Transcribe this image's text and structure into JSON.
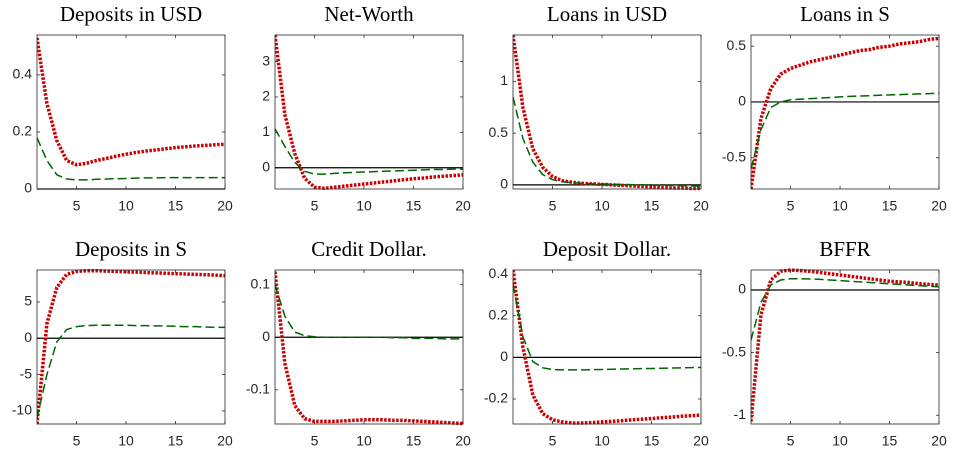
{
  "chart_data": [
    {
      "type": "line",
      "title": "Deposits in USD",
      "x": [
        1,
        2,
        3,
        4,
        5,
        6,
        7,
        8,
        9,
        10,
        11,
        12,
        13,
        14,
        15,
        16,
        17,
        18,
        19,
        20
      ],
      "xlim": [
        1,
        20
      ],
      "xticks": [
        5,
        10,
        15,
        20
      ],
      "ylim": [
        0,
        0.54
      ],
      "yticks": [
        0,
        0.2,
        0.4
      ],
      "zero_line": true,
      "series": [
        {
          "color": "#cc0000",
          "dash": "dotted",
          "values": [
            0.53,
            0.3,
            0.17,
            0.1,
            0.085,
            0.09,
            0.1,
            0.107,
            0.115,
            0.122,
            0.128,
            0.133,
            0.137,
            0.141,
            0.145,
            0.148,
            0.151,
            0.153,
            0.155,
            0.157
          ]
        },
        {
          "color": "#006600",
          "dash": "dashed",
          "values": [
            0.18,
            0.1,
            0.05,
            0.035,
            0.032,
            0.032,
            0.034,
            0.035,
            0.036,
            0.037,
            0.038,
            0.039,
            0.039,
            0.04,
            0.04,
            0.04,
            0.04,
            0.04,
            0.04,
            0.04
          ]
        }
      ]
    },
    {
      "type": "line",
      "title": "Net-Worth",
      "x": [
        1,
        2,
        3,
        4,
        5,
        6,
        7,
        8,
        9,
        10,
        11,
        12,
        13,
        14,
        15,
        16,
        17,
        18,
        19,
        20
      ],
      "xlim": [
        1,
        20
      ],
      "xticks": [
        5,
        10,
        15,
        20
      ],
      "ylim": [
        -0.6,
        3.75
      ],
      "yticks": [
        0,
        1,
        2,
        3
      ],
      "zero_line": true,
      "series": [
        {
          "color": "#cc0000",
          "dash": "dotted",
          "values": [
            3.75,
            1.5,
            0.4,
            -0.3,
            -0.55,
            -0.58,
            -0.55,
            -0.52,
            -0.49,
            -0.46,
            -0.43,
            -0.4,
            -0.37,
            -0.34,
            -0.31,
            -0.29,
            -0.26,
            -0.24,
            -0.22,
            -0.2
          ]
        },
        {
          "color": "#006600",
          "dash": "dashed",
          "values": [
            1.1,
            0.6,
            0.15,
            -0.1,
            -0.18,
            -0.18,
            -0.16,
            -0.14,
            -0.13,
            -0.12,
            -0.11,
            -0.1,
            -0.09,
            -0.08,
            -0.07,
            -0.06,
            -0.05,
            -0.05,
            -0.04,
            -0.04
          ]
        }
      ]
    },
    {
      "type": "line",
      "title": "Loans in USD",
      "x": [
        1,
        2,
        3,
        4,
        5,
        6,
        7,
        8,
        9,
        10,
        11,
        12,
        13,
        14,
        15,
        16,
        17,
        18,
        19,
        20
      ],
      "xlim": [
        1,
        20
      ],
      "xticks": [
        5,
        10,
        15,
        20
      ],
      "ylim": [
        -0.04,
        1.45
      ],
      "yticks": [
        0,
        0.5,
        1
      ],
      "zero_line": true,
      "series": [
        {
          "color": "#cc0000",
          "dash": "dotted",
          "values": [
            1.45,
            0.75,
            0.35,
            0.17,
            0.08,
            0.04,
            0.025,
            0.015,
            0.01,
            0.005,
            0,
            -0.005,
            -0.01,
            -0.015,
            -0.02,
            -0.025,
            -0.03,
            -0.03,
            -0.035,
            -0.035
          ]
        },
        {
          "color": "#006600",
          "dash": "dashed",
          "values": [
            0.85,
            0.45,
            0.22,
            0.1,
            0.05,
            0.03,
            0.02,
            0.015,
            0.01,
            0.008,
            0.006,
            0.004,
            0.002,
            0,
            -0.002,
            -0.004,
            -0.006,
            -0.008,
            -0.01,
            -0.012
          ]
        }
      ]
    },
    {
      "type": "line",
      "title": "Loans in S",
      "x": [
        1,
        2,
        3,
        4,
        5,
        6,
        7,
        8,
        9,
        10,
        11,
        12,
        13,
        14,
        15,
        16,
        17,
        18,
        19,
        20
      ],
      "xlim": [
        1,
        20
      ],
      "xticks": [
        5,
        10,
        15,
        20
      ],
      "ylim": [
        -0.78,
        0.6
      ],
      "yticks": [
        -0.5,
        0,
        0.5
      ],
      "zero_line": true,
      "series": [
        {
          "color": "#cc0000",
          "dash": "dotted",
          "values": [
            -0.78,
            -0.15,
            0.12,
            0.25,
            0.3,
            0.33,
            0.36,
            0.38,
            0.4,
            0.42,
            0.44,
            0.46,
            0.47,
            0.49,
            0.5,
            0.52,
            0.53,
            0.54,
            0.56,
            0.57
          ]
        },
        {
          "color": "#006600",
          "dash": "dashed",
          "values": [
            -0.6,
            -0.25,
            -0.05,
            0,
            0.02,
            0.025,
            0.03,
            0.035,
            0.04,
            0.045,
            0.05,
            0.053,
            0.056,
            0.06,
            0.063,
            0.066,
            0.069,
            0.072,
            0.075,
            0.078
          ]
        }
      ]
    },
    {
      "type": "line",
      "title": "Deposits in S",
      "x": [
        1,
        2,
        3,
        4,
        5,
        6,
        7,
        8,
        9,
        10,
        11,
        12,
        13,
        14,
        15,
        16,
        17,
        18,
        19,
        20
      ],
      "xlim": [
        1,
        20
      ],
      "xticks": [
        5,
        10,
        15,
        20
      ],
      "ylim": [
        -11.8,
        9.4
      ],
      "yticks": [
        -10,
        -5,
        0,
        5
      ],
      "zero_line": true,
      "series": [
        {
          "color": "#cc0000",
          "dash": "dotted",
          "values": [
            -11.8,
            2,
            7,
            8.8,
            9.2,
            9.3,
            9.3,
            9.25,
            9.2,
            9.15,
            9.1,
            9.05,
            9.0,
            8.95,
            8.9,
            8.85,
            8.8,
            8.75,
            8.7,
            8.6
          ]
        },
        {
          "color": "#006600",
          "dash": "dashed",
          "values": [
            -11,
            -5,
            -0.5,
            1.2,
            1.6,
            1.75,
            1.8,
            1.8,
            1.8,
            1.8,
            1.75,
            1.75,
            1.7,
            1.7,
            1.65,
            1.6,
            1.6,
            1.55,
            1.5,
            1.5
          ]
        }
      ]
    },
    {
      "type": "line",
      "title": "Credit Dollar.",
      "x": [
        1,
        2,
        3,
        4,
        5,
        6,
        7,
        8,
        9,
        10,
        11,
        12,
        13,
        14,
        15,
        16,
        17,
        18,
        19,
        20
      ],
      "xlim": [
        1,
        20
      ],
      "xticks": [
        5,
        10,
        15,
        20
      ],
      "ylim": [
        -0.165,
        0.128
      ],
      "yticks": [
        -0.1,
        0,
        0.1
      ],
      "zero_line": true,
      "series": [
        {
          "color": "#cc0000",
          "dash": "dotted",
          "values": [
            0.125,
            -0.05,
            -0.13,
            -0.155,
            -0.16,
            -0.16,
            -0.16,
            -0.159,
            -0.158,
            -0.157,
            -0.157,
            -0.157,
            -0.158,
            -0.158,
            -0.159,
            -0.16,
            -0.161,
            -0.162,
            -0.163,
            -0.164
          ]
        },
        {
          "color": "#006600",
          "dash": "dashed",
          "values": [
            0.1,
            0.04,
            0.01,
            0.003,
            0.001,
            0,
            0,
            0,
            0,
            0,
            0,
            0,
            -0.001,
            -0.001,
            -0.002,
            -0.002,
            -0.002,
            -0.003,
            -0.003,
            -0.003
          ]
        }
      ]
    },
    {
      "type": "line",
      "title": "Deposit Dollar.",
      "x": [
        1,
        2,
        3,
        4,
        5,
        6,
        7,
        8,
        9,
        10,
        11,
        12,
        13,
        14,
        15,
        16,
        17,
        18,
        19,
        20
      ],
      "xlim": [
        1,
        20
      ],
      "xticks": [
        5,
        10,
        15,
        20
      ],
      "ylim": [
        -0.32,
        0.42
      ],
      "yticks": [
        -0.2,
        0,
        0.2,
        0.4
      ],
      "zero_line": true,
      "series": [
        {
          "color": "#cc0000",
          "dash": "dotted",
          "values": [
            0.42,
            0.05,
            -0.18,
            -0.27,
            -0.3,
            -0.31,
            -0.315,
            -0.315,
            -0.313,
            -0.31,
            -0.307,
            -0.304,
            -0.3,
            -0.297,
            -0.294,
            -0.29,
            -0.287,
            -0.283,
            -0.28,
            -0.277
          ]
        },
        {
          "color": "#006600",
          "dash": "dashed",
          "values": [
            0.35,
            0.1,
            -0.02,
            -0.05,
            -0.058,
            -0.06,
            -0.06,
            -0.06,
            -0.059,
            -0.058,
            -0.057,
            -0.056,
            -0.055,
            -0.054,
            -0.053,
            -0.052,
            -0.051,
            -0.05,
            -0.049,
            -0.048
          ]
        }
      ]
    },
    {
      "type": "line",
      "title": "BFFR",
      "x": [
        1,
        2,
        3,
        4,
        5,
        6,
        7,
        8,
        9,
        10,
        11,
        12,
        13,
        14,
        15,
        16,
        17,
        18,
        19,
        20
      ],
      "xlim": [
        1,
        20
      ],
      "xticks": [
        5,
        10,
        15,
        20
      ],
      "ylim": [
        -1.07,
        0.16
      ],
      "yticks": [
        -1,
        -0.5,
        0
      ],
      "zero_line": true,
      "series": [
        {
          "color": "#cc0000",
          "dash": "dotted",
          "values": [
            -1.05,
            -0.2,
            0.08,
            0.15,
            0.16,
            0.155,
            0.15,
            0.14,
            0.13,
            0.12,
            0.11,
            0.1,
            0.09,
            0.08,
            0.07,
            0.065,
            0.06,
            0.05,
            0.045,
            0.04
          ]
        },
        {
          "color": "#006600",
          "dash": "dashed",
          "values": [
            -0.4,
            -0.1,
            0.04,
            0.08,
            0.09,
            0.09,
            0.088,
            0.085,
            0.08,
            0.075,
            0.07,
            0.065,
            0.06,
            0.055,
            0.05,
            0.045,
            0.04,
            0.035,
            0.03,
            0.025
          ]
        }
      ]
    }
  ]
}
